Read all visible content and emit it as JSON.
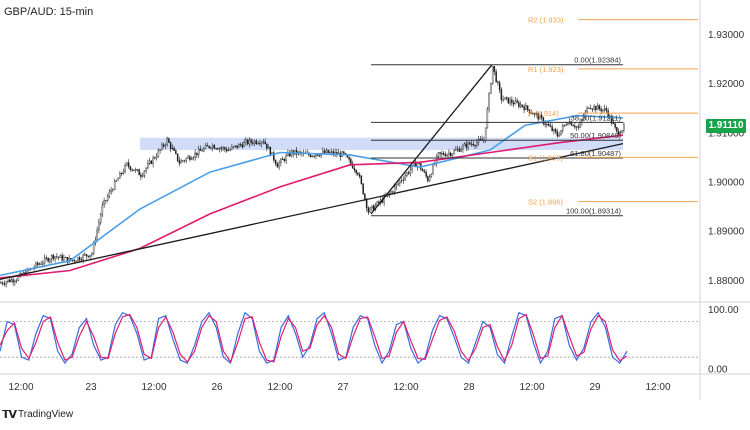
{
  "title": "GBP/AUD: 15-min",
  "current_price": "1.91110",
  "brand": "TradingView",
  "brand_logo": "tv-logo-icon",
  "colors": {
    "candle_up": "#1a1a1a",
    "candle_down": "#1a1a1a",
    "ma_fast": "#4a9fe8",
    "ma_slow": "#e01a6e",
    "pivot": "#f6a04d",
    "fib": "#333333",
    "zone": "#c9d7f7",
    "trendline": "#1a1a1a",
    "stoch_k": "#3a6be0",
    "stoch_d": "#e02070",
    "price_tag": "#17a34a"
  },
  "chart_data": [
    {
      "type": "candlestick",
      "title": "GBP/AUD: 15-min",
      "ylim": [
        1.876,
        1.937
      ],
      "y_ticks": [
        "1.93000",
        "1.92000",
        "1.91000",
        "1.90000",
        "1.89000",
        "1.88000"
      ],
      "y_tick_values": [
        1.93,
        1.92,
        1.91,
        1.9,
        1.89,
        1.88
      ],
      "x_ticks": [
        "12:00",
        "23",
        "12:00",
        "26",
        "12:00",
        "27",
        "12:00",
        "28",
        "12:00",
        "29",
        "12:00"
      ],
      "bars_total": 400,
      "x_tick_bars": [
        12,
        52,
        88,
        124,
        160,
        196,
        232,
        268,
        304,
        340,
        376
      ],
      "price_anchors": [
        [
          0,
          1.8795
        ],
        [
          10,
          1.8805
        ],
        [
          20,
          1.883
        ],
        [
          30,
          1.885
        ],
        [
          40,
          1.884
        ],
        [
          52,
          1.8855
        ],
        [
          58,
          1.895
        ],
        [
          64,
          1.899
        ],
        [
          72,
          1.9035
        ],
        [
          80,
          1.9015
        ],
        [
          90,
          1.906
        ],
        [
          95,
          1.9085
        ],
        [
          102,
          1.904
        ],
        [
          110,
          1.9055
        ],
        [
          120,
          1.9075
        ],
        [
          130,
          1.9065
        ],
        [
          140,
          1.908
        ],
        [
          150,
          1.9085
        ],
        [
          158,
          1.9035
        ],
        [
          166,
          1.906
        ],
        [
          176,
          1.9055
        ],
        [
          186,
          1.906
        ],
        [
          196,
          1.9055
        ],
        [
          204,
          1.902
        ],
        [
          210,
          1.894
        ],
        [
          222,
          1.8975
        ],
        [
          230,
          1.901
        ],
        [
          238,
          1.904
        ],
        [
          244,
          1.9005
        ],
        [
          250,
          1.9055
        ],
        [
          258,
          1.906
        ],
        [
          266,
          1.9075
        ],
        [
          276,
          1.9085
        ],
        [
          281,
          1.9235
        ],
        [
          286,
          1.917
        ],
        [
          298,
          1.9155
        ],
        [
          308,
          1.913
        ],
        [
          318,
          1.9095
        ],
        [
          324,
          1.9125
        ],
        [
          330,
          1.911
        ],
        [
          336,
          1.9155
        ],
        [
          346,
          1.9145
        ],
        [
          352,
          1.91
        ],
        [
          356,
          1.9111
        ]
      ],
      "moving_averages": [
        {
          "name": "",
          "color": "#4a9fe8",
          "points": [
            [
              0,
              1.881
            ],
            [
              40,
              1.884
            ],
            [
              80,
              1.8945
            ],
            [
              120,
              1.902
            ],
            [
              160,
              1.906
            ],
            [
              200,
              1.9055
            ],
            [
              240,
              1.903
            ],
            [
              280,
              1.9065
            ],
            [
              300,
              1.9115
            ],
            [
              330,
              1.9135
            ],
            [
              356,
              1.913
            ]
          ]
        },
        {
          "name": "",
          "color": "#e01a6e",
          "points": [
            [
              0,
              1.8805
            ],
            [
              40,
              1.882
            ],
            [
              80,
              1.8865
            ],
            [
              120,
              1.8935
            ],
            [
              160,
              1.899
            ],
            [
              200,
              1.9035
            ],
            [
              240,
              1.904
            ],
            [
              280,
              1.906
            ],
            [
              320,
              1.908
            ],
            [
              356,
              1.9095
            ]
          ]
        }
      ],
      "resistance_zone": {
        "y_from": 1.9065,
        "y_to": 1.909,
        "x_from": 80,
        "x_to": 356
      },
      "trendlines": [
        {
          "from": [
            0,
            1.8802
          ],
          "to": [
            356,
            1.9078
          ]
        },
        {
          "from": [
            212,
            1.8935
          ],
          "to": [
            281,
            1.9238
          ]
        }
      ],
      "fibonacci": {
        "x_from": 212,
        "x_to": 356,
        "levels": [
          {
            "label": "0.00(1.92384)",
            "value": 1.92384
          },
          {
            "label": "38.20(1.91211)",
            "value": 1.91211
          },
          {
            "label": "50.00(1.90849)",
            "value": 1.90849
          },
          {
            "label": "61.80(1.90487)",
            "value": 1.90487
          },
          {
            "label": "100.00(1.89314)",
            "value": 1.89314
          }
        ]
      },
      "pivots": [
        {
          "label": "R2 (1.933)",
          "value": 1.933
        },
        {
          "label": "R1 (1.923)",
          "value": 1.923
        },
        {
          "label": "P (1.914)",
          "value": 1.914
        },
        {
          "label": "S1 (1.905)",
          "value": 1.905
        },
        {
          "label": "S2 (1.896)",
          "value": 1.896
        }
      ]
    },
    {
      "type": "line",
      "title": "",
      "ylim": [
        -5,
        108
      ],
      "y_ticks": [
        "100.00",
        "0.00"
      ],
      "y_tick_values": [
        100,
        0
      ],
      "overbought": 80,
      "oversold": 20,
      "series": [
        {
          "name": "",
          "color": "#3a6be0",
          "values": [
            30,
            80,
            75,
            20,
            15,
            60,
            90,
            85,
            30,
            10,
            25,
            70,
            85,
            40,
            15,
            20,
            75,
            95,
            90,
            60,
            15,
            20,
            85,
            90,
            50,
            15,
            10,
            40,
            80,
            95,
            70,
            20,
            10,
            60,
            95,
            85,
            30,
            10,
            15,
            70,
            90,
            60,
            20,
            40,
            85,
            95,
            60,
            15,
            20,
            70,
            90,
            85,
            40,
            10,
            30,
            75,
            80,
            35,
            10,
            20,
            65,
            90,
            85,
            55,
            20,
            10,
            45,
            80,
            70,
            25,
            10,
            55,
            95,
            90,
            45,
            10,
            30,
            85,
            90,
            40,
            15,
            35,
            80,
            95,
            70,
            20,
            10,
            30
          ]
        },
        {
          "name": "",
          "color": "#e02070",
          "values": [
            40,
            65,
            78,
            35,
            18,
            45,
            80,
            88,
            45,
            15,
            20,
            55,
            80,
            55,
            20,
            18,
            60,
            88,
            92,
            70,
            25,
            18,
            70,
            88,
            62,
            25,
            12,
            30,
            70,
            90,
            80,
            30,
            12,
            45,
            85,
            88,
            45,
            15,
            12,
            55,
            85,
            70,
            30,
            35,
            75,
            90,
            70,
            25,
            18,
            55,
            85,
            88,
            55,
            18,
            22,
            62,
            80,
            48,
            18,
            16,
            50,
            82,
            88,
            65,
            30,
            14,
            35,
            70,
            75,
            38,
            14,
            40,
            85,
            92,
            58,
            18,
            22,
            70,
            90,
            55,
            22,
            28,
            68,
            90,
            80,
            32,
            14,
            22
          ]
        }
      ]
    }
  ]
}
